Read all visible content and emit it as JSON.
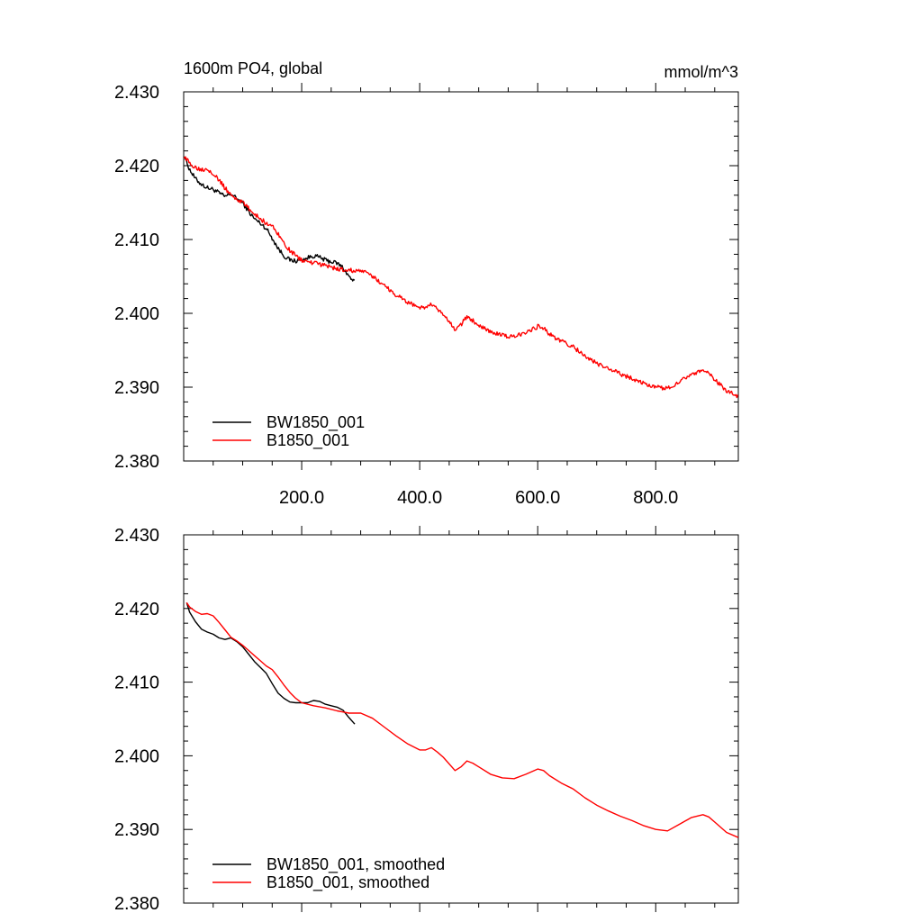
{
  "colors": {
    "black_series": "#000000",
    "red_series": "#ff0000",
    "axis": "#000000"
  },
  "chart_data": [
    {
      "type": "line",
      "title_left": "1600m PO4, global",
      "title_right": "mmol/m^3",
      "xlim": [
        0,
        940
      ],
      "ylim": [
        2.38,
        2.43
      ],
      "yticks": [
        "2.430",
        "2.420",
        "2.410",
        "2.400",
        "2.390",
        "2.380"
      ],
      "xticks": [
        "200.0",
        "400.0",
        "600.0",
        "800.0"
      ],
      "legend_position": "bottom-left",
      "series": [
        {
          "name": "BW1850_001",
          "color": "#000000",
          "noise": true,
          "x": [
            0,
            10,
            20,
            30,
            40,
            50,
            60,
            70,
            80,
            90,
            100,
            110,
            120,
            130,
            140,
            150,
            160,
            170,
            180,
            190,
            200,
            210,
            220,
            230,
            240,
            250,
            260,
            270,
            280,
            290
          ],
          "y": [
            2.4215,
            2.4195,
            2.4182,
            2.4175,
            2.417,
            2.4168,
            2.4163,
            2.4158,
            2.4162,
            2.4155,
            2.415,
            2.4138,
            2.4128,
            2.4122,
            2.4115,
            2.4102,
            2.4088,
            2.4078,
            2.4072,
            2.4071,
            2.4072,
            2.4075,
            2.4078,
            2.4076,
            2.4072,
            2.407,
            2.4068,
            2.4062,
            2.405,
            2.4042
          ]
        },
        {
          "name": "B1850_001",
          "color": "#ff0000",
          "noise": true,
          "x": [
            0,
            10,
            20,
            30,
            40,
            50,
            60,
            70,
            80,
            90,
            100,
            110,
            120,
            130,
            140,
            150,
            160,
            170,
            180,
            190,
            200,
            220,
            240,
            260,
            280,
            300,
            320,
            340,
            360,
            380,
            400,
            410,
            420,
            430,
            440,
            460,
            470,
            480,
            490,
            500,
            520,
            540,
            560,
            580,
            600,
            610,
            620,
            640,
            660,
            680,
            700,
            720,
            740,
            760,
            780,
            800,
            820,
            840,
            860,
            880,
            890,
            900,
            920,
            940
          ],
          "y": [
            2.4213,
            2.4203,
            2.4198,
            2.4195,
            2.4196,
            2.419,
            2.418,
            2.417,
            2.416,
            2.4155,
            2.415,
            2.4142,
            2.4135,
            2.4128,
            2.4122,
            2.4118,
            2.4108,
            2.4095,
            2.4085,
            2.4078,
            2.4072,
            2.4068,
            2.4065,
            2.406,
            2.4058,
            2.4058,
            2.405,
            2.4038,
            2.4025,
            2.4015,
            2.4008,
            2.4008,
            2.4012,
            2.4005,
            2.3998,
            2.3978,
            2.3985,
            2.3995,
            2.399,
            2.3985,
            2.3975,
            2.397,
            2.3968,
            2.3975,
            2.3982,
            2.398,
            2.3972,
            2.3962,
            2.3955,
            2.3942,
            2.3932,
            2.3925,
            2.3918,
            2.3912,
            2.3905,
            2.39,
            2.3898,
            2.3908,
            2.3918,
            2.3922,
            2.3918,
            2.391,
            2.3895,
            2.3888
          ]
        }
      ]
    },
    {
      "type": "line",
      "xlim": [
        0,
        940
      ],
      "ylim": [
        2.38,
        2.43
      ],
      "yticks": [
        "2.430",
        "2.420",
        "2.410",
        "2.400",
        "2.390",
        "2.380"
      ],
      "legend_position": "bottom-left",
      "series": [
        {
          "name": "BW1850_001, smoothed",
          "color": "#000000",
          "noise": false,
          "x": [
            5,
            10,
            20,
            30,
            40,
            50,
            60,
            70,
            80,
            90,
            100,
            110,
            120,
            130,
            140,
            150,
            160,
            170,
            180,
            190,
            200,
            210,
            220,
            230,
            240,
            250,
            260,
            270,
            280,
            290
          ],
          "y": [
            2.4208,
            2.4195,
            2.4182,
            2.4172,
            2.4168,
            2.4165,
            2.416,
            2.4158,
            2.416,
            2.4155,
            2.4148,
            2.4138,
            2.4128,
            2.412,
            2.4112,
            2.4098,
            2.4085,
            2.4078,
            2.4073,
            2.4072,
            2.4072,
            2.4072,
            2.4075,
            2.4074,
            2.407,
            2.4068,
            2.4066,
            2.4062,
            2.4052,
            2.4043
          ]
        },
        {
          "name": "B1850_001, smoothed",
          "color": "#ff0000",
          "noise": false,
          "x": [
            5,
            10,
            20,
            30,
            40,
            50,
            60,
            70,
            80,
            90,
            100,
            110,
            120,
            130,
            140,
            150,
            160,
            170,
            180,
            190,
            200,
            220,
            240,
            260,
            280,
            300,
            320,
            340,
            360,
            380,
            400,
            410,
            420,
            430,
            440,
            460,
            470,
            480,
            490,
            500,
            520,
            540,
            560,
            580,
            600,
            610,
            620,
            640,
            660,
            680,
            700,
            720,
            740,
            760,
            780,
            800,
            820,
            840,
            860,
            880,
            890,
            900,
            920,
            940
          ],
          "y": [
            2.4208,
            2.4202,
            2.4196,
            2.4192,
            2.4193,
            2.419,
            2.4181,
            2.4171,
            2.4161,
            2.4156,
            2.415,
            2.4143,
            2.4136,
            2.4129,
            2.4122,
            2.4117,
            2.4107,
            2.4096,
            2.4086,
            2.4078,
            2.4072,
            2.4068,
            2.4065,
            2.4061,
            2.4058,
            2.4058,
            2.4051,
            2.4039,
            2.4027,
            2.4016,
            2.4008,
            2.4008,
            2.4011,
            2.4005,
            2.3998,
            2.398,
            2.3985,
            2.3993,
            2.399,
            2.3985,
            2.3975,
            2.397,
            2.3969,
            2.3975,
            2.3982,
            2.398,
            2.3973,
            2.3963,
            2.3955,
            2.3943,
            2.3933,
            2.3925,
            2.3918,
            2.3912,
            2.3905,
            2.39,
            2.3898,
            2.3907,
            2.3916,
            2.392,
            2.3917,
            2.391,
            2.3896,
            2.3889
          ]
        }
      ]
    }
  ]
}
